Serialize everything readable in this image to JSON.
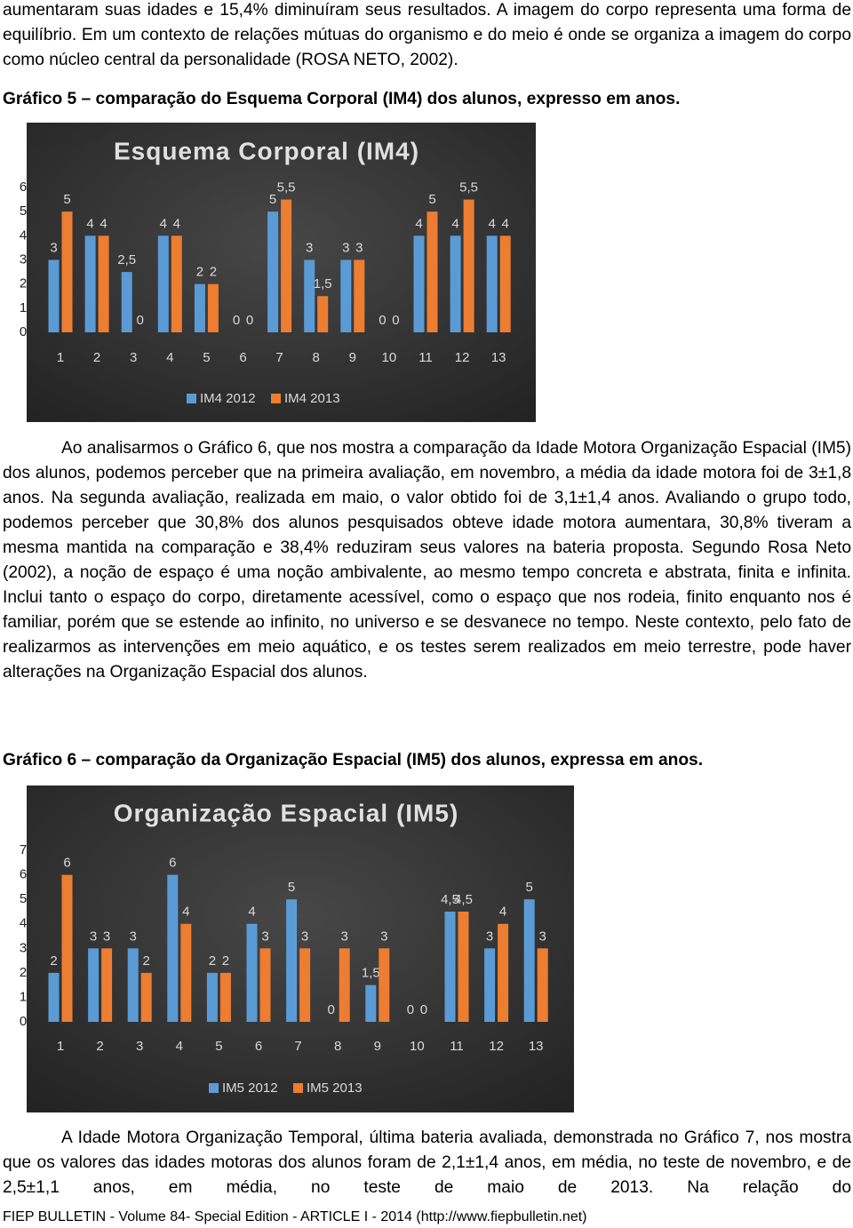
{
  "paragraphs": [
    "aumentaram suas idades e 15,4% diminuíram seus resultados. A imagem do corpo representa uma forma de equilíbrio. Em um contexto de relações mútuas do organismo e do meio é onde se organiza a imagem do corpo como núcleo central da personalidade (ROSA NETO, 2002).",
    "Ao analisarmos o Gráfico 6, que nos mostra a comparação da Idade Motora Organização Espacial (IM5) dos alunos, podemos perceber que na primeira avaliação, em novembro, a média da idade motora foi de 3±1,8 anos. Na segunda avaliação, realizada em maio, o valor obtido foi de 3,1±1,4 anos. Avaliando o grupo todo, podemos perceber que 30,8% dos alunos pesquisados obteve idade motora aumentara, 30,8% tiveram a mesma mantida na comparação e 38,4% reduziram seus valores na bateria proposta. Segundo Rosa Neto (2002), a noção de espaço é uma noção ambivalente, ao mesmo tempo concreta e abstrata, finita e infinita. Inclui tanto o espaço do corpo, diretamente acessível, como o espaço que nos rodeia, finito enquanto nos é familiar, porém que se estende ao infinito, no universo e se desvanece no tempo. Neste contexto, pelo fato de realizarmos as intervenções em meio aquático, e os testes serem realizados em meio terrestre, pode haver alterações na Organização Espacial dos alunos.",
    "A Idade Motora Organização Temporal, última bateria avaliada, demonstrada no Gráfico 7, nos mostra que os valores das idades motoras dos alunos foram de 2,1±1,4 anos, em média, no teste de novembro, e de 2,5±1,1 anos, em média, no teste de maio de 2013. Na relação do"
  ],
  "captions": [
    "Gráfico 5 – comparação do Esquema Corporal (IM4) dos alunos, expresso em anos.",
    "Gráfico 6 – comparação da Organização Espacial (IM5) dos alunos, expressa em anos."
  ],
  "footer": "FIEP BULLETIN - Volume 84- Special Edition - ARTICLE I - 2014 (http://www.fiepbulletin.net)",
  "chart_data": [
    {
      "type": "bar",
      "title": "Esquema Corporal (IM4)",
      "categories": [
        "1",
        "2",
        "3",
        "4",
        "5",
        "6",
        "7",
        "8",
        "9",
        "10",
        "11",
        "12",
        "13"
      ],
      "series": [
        {
          "name": "IM4 2012",
          "color": "#5b9bd5",
          "values": [
            3,
            4,
            2.5,
            4,
            2,
            0,
            5,
            3,
            3,
            0,
            4,
            4,
            4
          ],
          "value_labels": [
            "3",
            "4",
            "2,5",
            "4",
            "2",
            "0",
            "5",
            "3",
            "3",
            "0",
            "4",
            "4",
            "4"
          ]
        },
        {
          "name": "IM4 2013",
          "color": "#ed7d31",
          "values": [
            5,
            4,
            0,
            4,
            2,
            0,
            5.5,
            1.5,
            3,
            0,
            5,
            5.5,
            4
          ],
          "value_labels": [
            "5",
            "4",
            "0",
            "4",
            "2",
            "0",
            "5,5",
            "1,5",
            "3",
            "0",
            "5",
            "5,5",
            "4"
          ]
        }
      ],
      "ylim": [
        0,
        6
      ],
      "yticks": [
        0,
        1,
        2,
        3,
        4,
        5,
        6
      ],
      "grid": false,
      "legend": "bottom"
    },
    {
      "type": "bar",
      "title": "Organização Espacial (IM5)",
      "categories": [
        "1",
        "2",
        "3",
        "4",
        "5",
        "6",
        "7",
        "8",
        "9",
        "10",
        "11",
        "12",
        "13"
      ],
      "series": [
        {
          "name": "IM5 2012",
          "color": "#5b9bd5",
          "values": [
            2,
            3,
            3,
            6,
            2,
            4,
            5,
            0,
            1.5,
            0,
            4.5,
            3,
            5
          ],
          "value_labels": [
            "2",
            "3",
            "3",
            "6",
            "2",
            "4",
            "5",
            "0",
            "1,5",
            "0",
            "4,5",
            "3",
            "5"
          ]
        },
        {
          "name": "IM5 2013",
          "color": "#ed7d31",
          "values": [
            6,
            3,
            2,
            4,
            2,
            3,
            3,
            3,
            3,
            0,
            4.5,
            4,
            3
          ],
          "value_labels": [
            "6",
            "3",
            "2",
            "4",
            "2",
            "3",
            "3",
            "3",
            "3",
            "0",
            "4,5",
            "4",
            "3"
          ]
        }
      ],
      "ylim": [
        0,
        7
      ],
      "yticks": [
        0,
        1,
        2,
        3,
        4,
        5,
        6,
        7
      ],
      "grid": false,
      "legend": "bottom"
    }
  ]
}
